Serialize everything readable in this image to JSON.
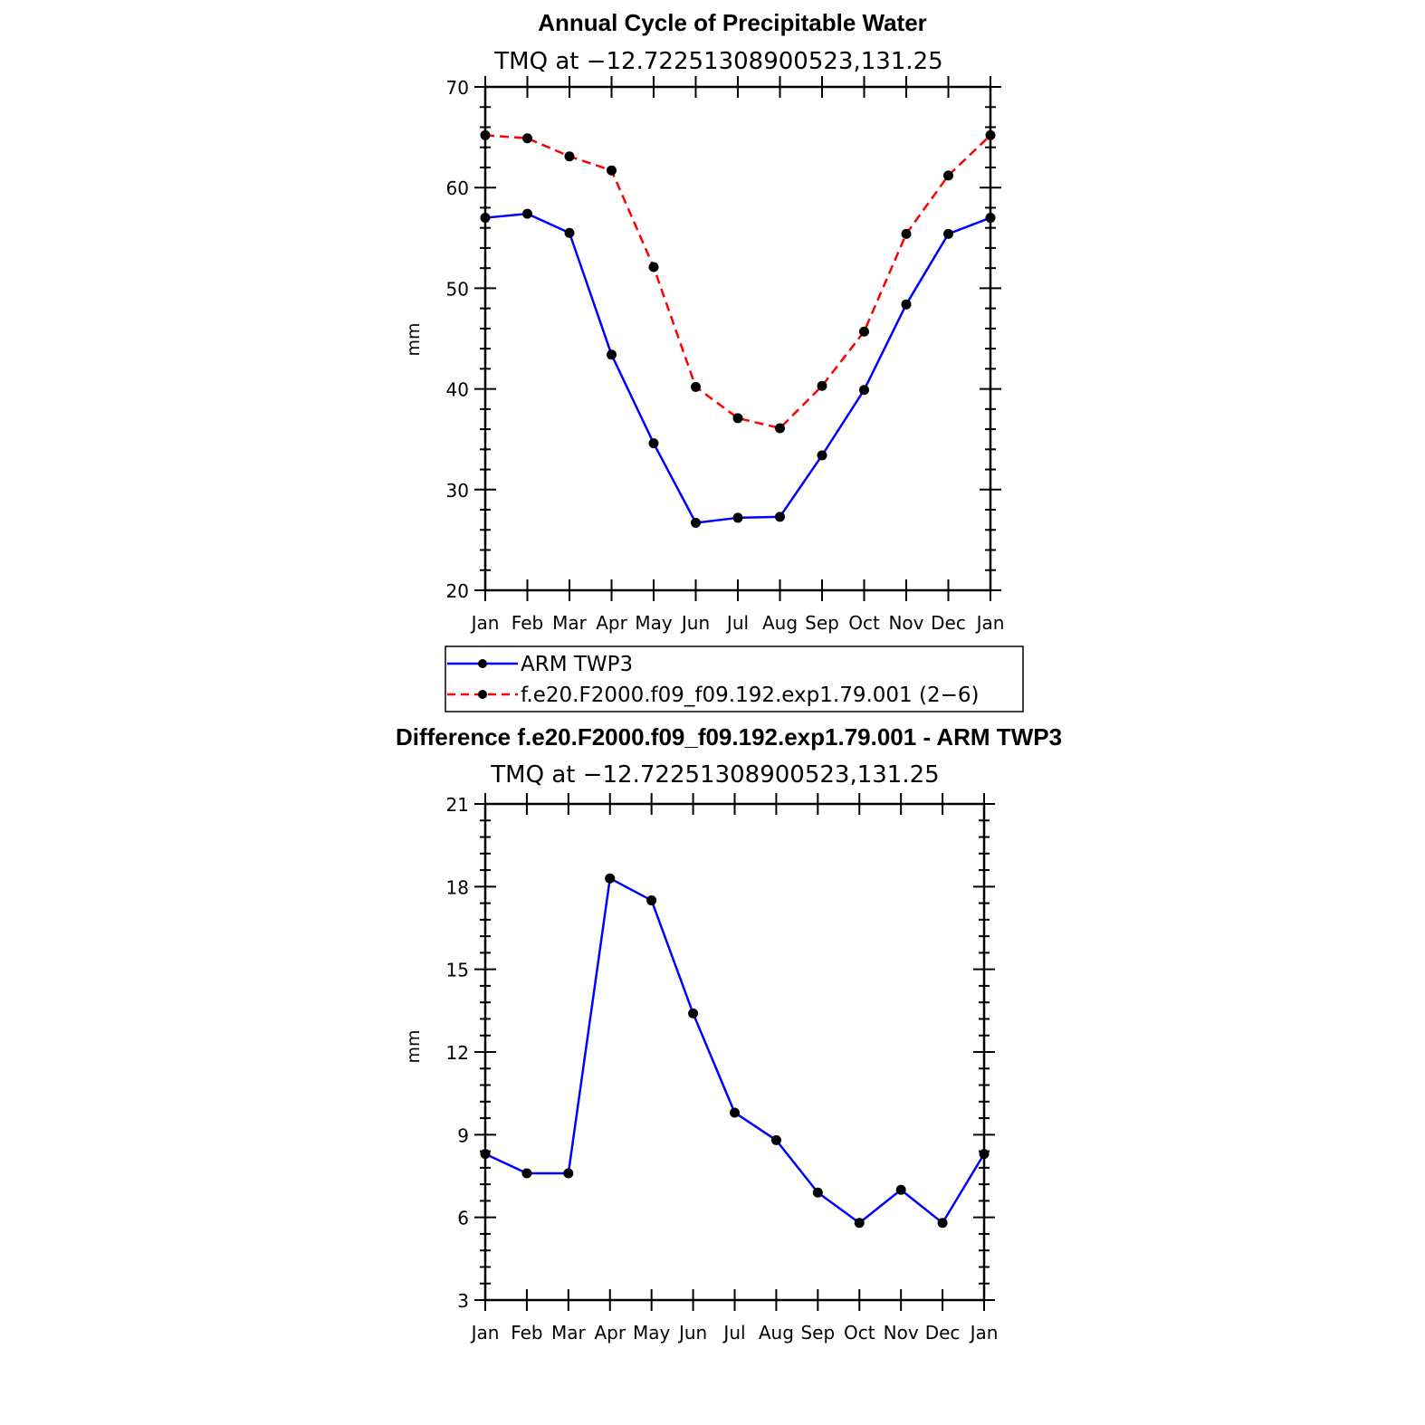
{
  "chart_data": [
    {
      "type": "line",
      "title": "Annual Cycle of Precipitable Water",
      "subtitle": "TMQ at −12.72251308900523,131.25",
      "xlabel": "",
      "ylabel": "mm",
      "categories": [
        "Jan",
        "Feb",
        "Mar",
        "Apr",
        "May",
        "Jun",
        "Jul",
        "Aug",
        "Sep",
        "Oct",
        "Nov",
        "Dec",
        "Jan"
      ],
      "ylim": [
        20,
        70
      ],
      "yticks": [
        20,
        30,
        40,
        50,
        60,
        70
      ],
      "series": [
        {
          "name": "ARM TWP3",
          "color": "#0000ff",
          "dash": "solid",
          "values": [
            57.0,
            57.4,
            55.5,
            43.4,
            34.6,
            26.7,
            27.2,
            27.3,
            33.4,
            39.9,
            48.4,
            55.4,
            57.0
          ]
        },
        {
          "name": "f.e20.F2000.f09_f09.192.exp1.79.001 (2−6)",
          "color": "#ff0000",
          "dash": "dashed",
          "values": [
            65.2,
            64.9,
            63.1,
            61.7,
            52.1,
            40.2,
            37.1,
            36.1,
            40.3,
            45.7,
            55.4,
            61.2,
            65.2
          ]
        }
      ],
      "legend": "bottom"
    },
    {
      "type": "line",
      "title": "Difference f.e20.F2000.f09_f09.192.exp1.79.001 - ARM TWP3",
      "subtitle": "TMQ at −12.72251308900523,131.25",
      "xlabel": "",
      "ylabel": "mm",
      "categories": [
        "Jan",
        "Feb",
        "Mar",
        "Apr",
        "May",
        "Jun",
        "Jul",
        "Aug",
        "Sep",
        "Oct",
        "Nov",
        "Dec",
        "Jan"
      ],
      "ylim": [
        3,
        21
      ],
      "yticks": [
        3,
        6,
        9,
        12,
        15,
        18,
        21
      ],
      "series": [
        {
          "name": "Difference",
          "color": "#0000ff",
          "dash": "solid",
          "values": [
            8.3,
            7.6,
            7.6,
            18.3,
            17.5,
            13.4,
            9.8,
            8.8,
            6.9,
            5.8,
            7.0,
            5.8,
            8.3
          ]
        }
      ]
    }
  ]
}
